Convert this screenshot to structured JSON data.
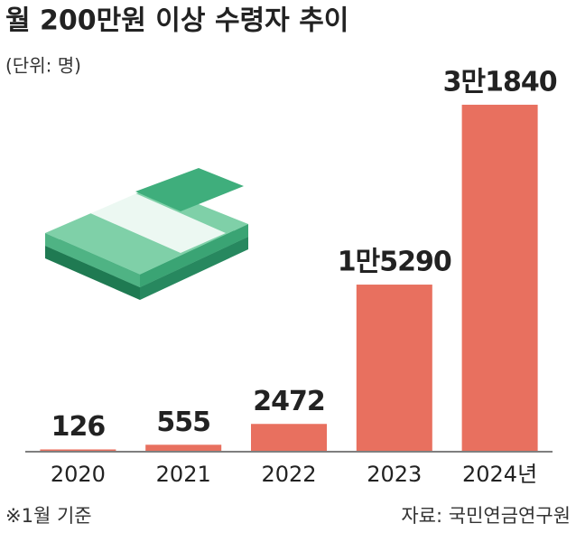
{
  "chart_data": {
    "type": "bar",
    "title": "월 200만원 이상 수령자 추이",
    "subtitle": "(단위: 명)",
    "categories": [
      "2020",
      "2021",
      "2022",
      "2023",
      "2024년"
    ],
    "values": [
      126,
      555,
      2472,
      15290,
      31840
    ],
    "value_labels": [
      "126",
      "555",
      "2472",
      "1만5290",
      "3만1840"
    ],
    "color": "#e8705f",
    "ylim": [
      0,
      32000
    ],
    "annotations": [
      "※1월 기준",
      "자료: 국민연금연구원"
    ]
  }
}
